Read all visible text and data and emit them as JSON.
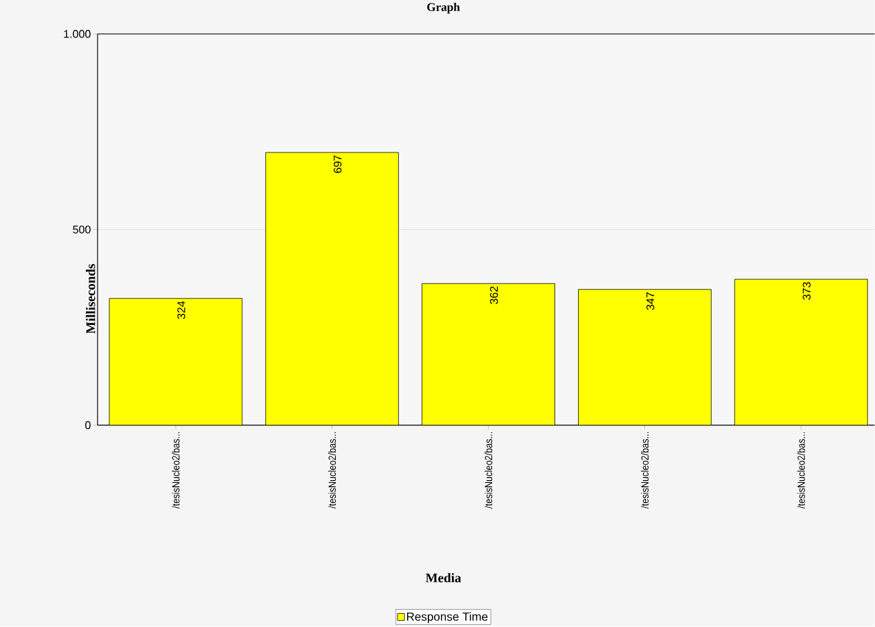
{
  "chart_data": {
    "type": "bar",
    "title": "Graph",
    "xlabel": "Media",
    "ylabel": "Milliseconds",
    "categories": [
      "/tesisNucleo2/bas...",
      "/tesisNucleo2/bas...",
      "/tesisNucleo2/bas...",
      "/tesisNucleo2/bas...",
      "/tesisNucleo2/bas..."
    ],
    "series": [
      {
        "name": "Response Time",
        "color": "#ffff00",
        "values": [
          324,
          697,
          362,
          347,
          373
        ]
      }
    ],
    "ylim": [
      0,
      1000
    ],
    "yticks": [
      0,
      500,
      {
        "value": 1000,
        "label": "1.000"
      }
    ],
    "grid": "y",
    "legend": "bottom",
    "data_labels": true
  }
}
